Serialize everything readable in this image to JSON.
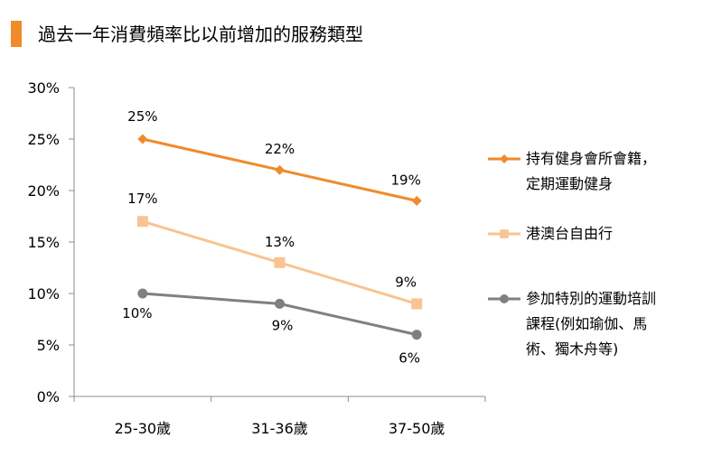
{
  "title": "過去一年消費頻率比以前增加的服務類型",
  "colors": {
    "accent": "#f08b2a"
  },
  "chart_data": {
    "type": "line",
    "title": "過去一年消費頻率比以前增加的服務類型",
    "categories": [
      "25-30歲",
      "31-36歲",
      "37-50歲"
    ],
    "ylim": [
      0,
      30
    ],
    "yticks": [
      0,
      5,
      10,
      15,
      20,
      25,
      30
    ],
    "ytick_labels": [
      "0%",
      "5%",
      "10%",
      "15%",
      "20%",
      "25%",
      "30%"
    ],
    "grid": false,
    "legend_position": "right",
    "series": [
      {
        "name": "持有健身會所會籍，定期運動健身",
        "name_lines": [
          "持有健身會所會籍，",
          "定期運動健身"
        ],
        "values": [
          25,
          22,
          19
        ],
        "labels": [
          "25%",
          "22%",
          "19%"
        ],
        "color": "#f08b2a",
        "marker": "diamond"
      },
      {
        "name": "港澳台自由行",
        "name_lines": [
          "港澳台自由行"
        ],
        "values": [
          17,
          13,
          9
        ],
        "labels": [
          "17%",
          "13%",
          "9%"
        ],
        "color": "#f9c393",
        "marker": "square"
      },
      {
        "name": "參加特別的運動培訓課程(例如瑜伽、馬術、獨木舟等)",
        "name_lines": [
          "參加特別的運動培訓",
          "課程(例如瑜伽、馬",
          "術、獨木舟等)"
        ],
        "values": [
          10,
          9,
          6
        ],
        "labels": [
          "10%",
          "9%",
          "6%"
        ],
        "color": "#808080",
        "marker": "circle"
      }
    ]
  }
}
